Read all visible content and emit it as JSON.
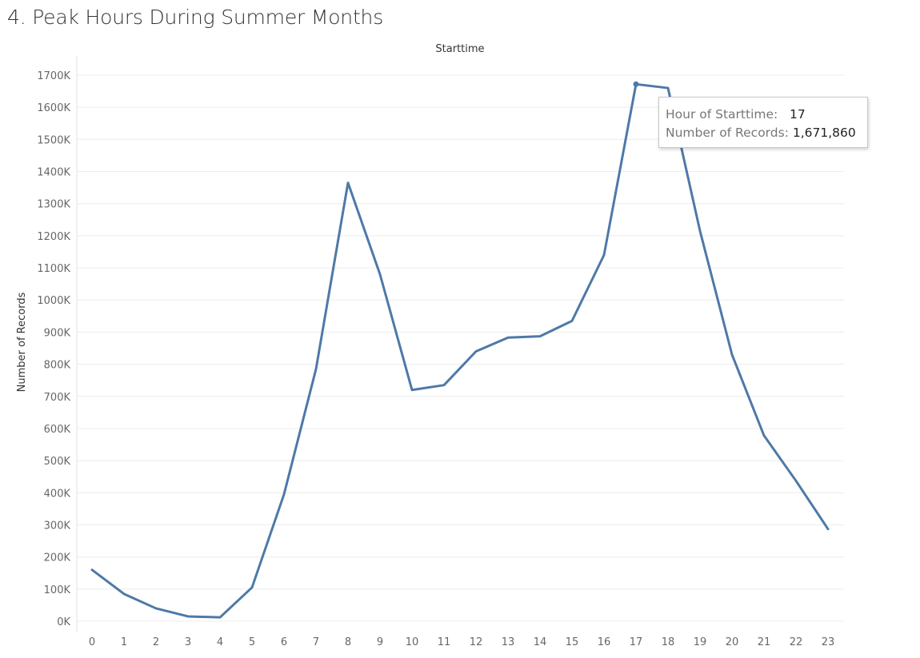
{
  "title": "4. Peak Hours During Summer Months",
  "tooltip": {
    "hour_label": "Hour of Starttime:",
    "hour_value": "17",
    "records_label": "Number of Records:",
    "records_value": "1,671,860"
  },
  "colors": {
    "line": "#4e79a7",
    "grid": "#ececec"
  },
  "chart_data": {
    "type": "line",
    "title": "Starttime",
    "xlabel": "",
    "ylabel": "Number of Records",
    "x": [
      0,
      1,
      2,
      3,
      4,
      5,
      6,
      7,
      8,
      9,
      10,
      11,
      12,
      13,
      14,
      15,
      16,
      17,
      18,
      19,
      20,
      21,
      22,
      23
    ],
    "series": [
      {
        "values": [
          160000,
          85000,
          40000,
          15000,
          12000,
          105000,
          395000,
          785000,
          1365000,
          1080000,
          720000,
          735000,
          840000,
          883000,
          887000,
          935000,
          1140000,
          1671860,
          1660000,
          1215000,
          830000,
          578000,
          437000,
          287000
        ]
      }
    ],
    "ylim": [
      0,
      1700000
    ],
    "yticks": [
      {
        "value": 0,
        "label": "0K"
      },
      {
        "value": 100000,
        "label": "100K"
      },
      {
        "value": 200000,
        "label": "200K"
      },
      {
        "value": 300000,
        "label": "300K"
      },
      {
        "value": 400000,
        "label": "400K"
      },
      {
        "value": 500000,
        "label": "500K"
      },
      {
        "value": 600000,
        "label": "600K"
      },
      {
        "value": 700000,
        "label": "700K"
      },
      {
        "value": 800000,
        "label": "800K"
      },
      {
        "value": 900000,
        "label": "900K"
      },
      {
        "value": 1000000,
        "label": "1000K"
      },
      {
        "value": 1100000,
        "label": "1100K"
      },
      {
        "value": 1200000,
        "label": "1200K"
      },
      {
        "value": 1300000,
        "label": "1300K"
      },
      {
        "value": 1400000,
        "label": "1400K"
      },
      {
        "value": 1500000,
        "label": "1500K"
      },
      {
        "value": 1600000,
        "label": "1600K"
      },
      {
        "value": 1700000,
        "label": "1700K"
      }
    ],
    "xticks": [
      "0",
      "1",
      "2",
      "3",
      "4",
      "5",
      "6",
      "7",
      "8",
      "9",
      "10",
      "11",
      "12",
      "13",
      "14",
      "15",
      "16",
      "17",
      "18",
      "19",
      "20",
      "21",
      "22",
      "23"
    ],
    "highlight_index": 17,
    "grid": true
  }
}
